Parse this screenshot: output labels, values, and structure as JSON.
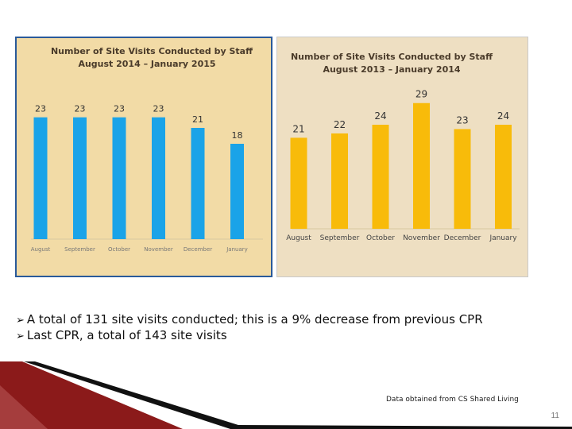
{
  "chart_data": [
    {
      "type": "bar",
      "title": "Number of Site Visits Conducted by Staff",
      "subtitle": "August 2014 – January 2015",
      "categories": [
        "August",
        "September",
        "October",
        "November",
        "December",
        "January"
      ],
      "values": [
        23,
        23,
        23,
        23,
        21,
        18
      ],
      "ylim": [
        0,
        30
      ],
      "grid": false,
      "legend": "none",
      "bar_color": "#1aa3e8",
      "background": "#f2dba6"
    },
    {
      "type": "bar",
      "title": "Number of Site Visits Conducted by Staff",
      "subtitle": "August 2013 – January 2014",
      "categories": [
        "August",
        "September",
        "October",
        "November",
        "December",
        "January"
      ],
      "values": [
        21,
        22,
        24,
        29,
        23,
        24
      ],
      "ylim": [
        0,
        35
      ],
      "grid": false,
      "legend": "none",
      "bar_color": "#f8bb0a",
      "background": "#eedfc2"
    }
  ],
  "bullets": [
    "A total of 131 site visits conducted; this is a 9% decrease from previous CPR",
    "Last CPR, a total of 143 site visits"
  ],
  "bullet_icon": "arrow-bullet-icon",
  "source_note": "Data obtained from CS Shared Living",
  "page_number": "11",
  "colors": {
    "footer_accent": "#8b1a1a",
    "footer_dark": "#111111"
  }
}
